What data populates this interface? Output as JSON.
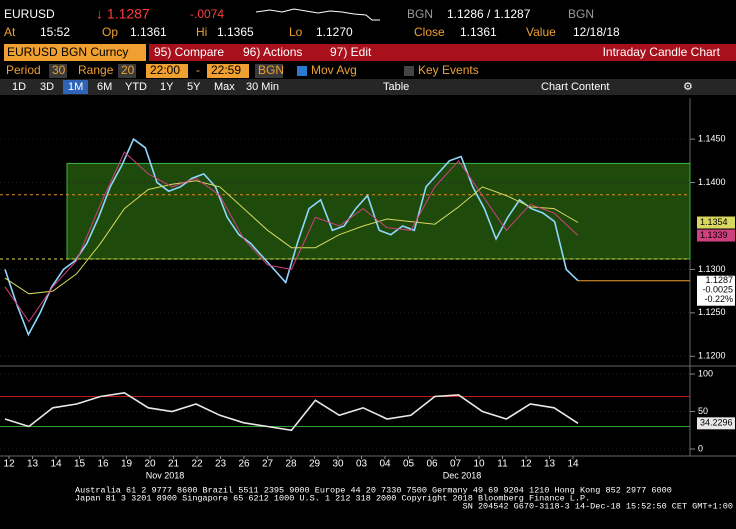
{
  "header": {
    "ticker": "EURUSD",
    "last": "↓ 1.1287",
    "change": "-.0074",
    "source": "BGN",
    "bid_ask": "1.1286 / 1.1287",
    "source2": "BGN"
  },
  "quote": {
    "at_label": "At",
    "at": "15:52",
    "op_label": "Op",
    "op": "1.1361",
    "hi_label": "Hi",
    "hi": "1.1365",
    "lo_label": "Lo",
    "lo": "1.1270",
    "close_label": "Close",
    "close": "1.1361",
    "value_label": "Value",
    "value": "12/18/18"
  },
  "command_bar": {
    "security": "EURUSD BGN Curncy",
    "compare": "95) Compare",
    "actions": "96) Actions",
    "edit": "97) Edit",
    "title": "Intraday Candle Chart"
  },
  "settings": {
    "period_label": "Period",
    "period": "30",
    "range_label": "Range",
    "range": "20",
    "start": "22:00",
    "dash": "-",
    "end": "22:59",
    "source": "BGN",
    "mov_avg": "Mov Avg",
    "key_events": "Key Events"
  },
  "toolbar": {
    "buttons": [
      "1D",
      "3D",
      "1M",
      "6M",
      "YTD",
      "1Y",
      "5Y",
      "Max",
      "30 Min"
    ],
    "table": "Table",
    "chart_content": "Chart Content"
  },
  "chart_data": [
    {
      "type": "line",
      "ylim": [
        1.119,
        1.1495
      ],
      "yticks": [
        {
          "value": 1.145,
          "label": "1.1450"
        },
        {
          "value": 1.14,
          "label": "1.1400"
        },
        {
          "value": 1.13,
          "label": "1.1300"
        },
        {
          "value": 1.125,
          "label": "1.1250"
        },
        {
          "value": 1.12,
          "label": "1.1200"
        }
      ],
      "band": [
        1.1312,
        1.1422
      ],
      "levels": [
        {
          "value": 1.1386,
          "color": "#e08a1e"
        },
        {
          "value": 1.1312,
          "color": "#e0e040"
        }
      ],
      "series": [
        {
          "color": "#8fd8ff",
          "values": [
            1.13,
            1.126,
            1.1225,
            1.125,
            1.128,
            1.13,
            1.131,
            1.133,
            1.136,
            1.1395,
            1.142,
            1.145,
            1.144,
            1.14,
            1.139,
            1.1395,
            1.1405,
            1.141,
            1.1395,
            1.136,
            1.134,
            1.133,
            1.1315,
            1.13,
            1.1285,
            1.133,
            1.137,
            1.138,
            1.1345,
            1.135,
            1.137,
            1.1385,
            1.1345,
            1.134,
            1.135,
            1.1345,
            1.1395,
            1.141,
            1.1425,
            1.143,
            1.1395,
            1.137,
            1.1335,
            1.136,
            1.138,
            1.137,
            1.1365,
            1.1355,
            1.13,
            1.1287
          ],
          "end_label": [
            "1.1287",
            "-0.0025",
            "-0.22%"
          ]
        },
        {
          "color": "#d8d860",
          "values": [
            1.129,
            1.1272,
            1.1275,
            1.1295,
            1.133,
            1.137,
            1.1392,
            1.1398,
            1.1402,
            1.1395,
            1.137,
            1.1345,
            1.1325,
            1.1325,
            1.134,
            1.135,
            1.1358,
            1.1355,
            1.1352,
            1.1372,
            1.1395,
            1.1385,
            1.1372,
            1.137,
            1.1354
          ],
          "end_label": "1.1354"
        },
        {
          "color": "#d0407f",
          "values": [
            1.128,
            1.124,
            1.128,
            1.131,
            1.1375,
            1.1435,
            1.141,
            1.1395,
            1.1405,
            1.1385,
            1.1335,
            1.1305,
            1.13,
            1.136,
            1.135,
            1.137,
            1.1348,
            1.1345,
            1.1395,
            1.1425,
            1.1385,
            1.1345,
            1.1375,
            1.1365,
            1.1339
          ],
          "end_label": "1.1339"
        }
      ]
    },
    {
      "type": "line",
      "ylim": [
        -8,
        108
      ],
      "yticks": [
        0,
        50,
        100
      ],
      "levels": [
        {
          "value": 70,
          "color": "#c01818"
        },
        {
          "value": 30,
          "color": "#2fa02f"
        }
      ],
      "series": [
        {
          "color": "#e8e8e8",
          "values": [
            40,
            30,
            55,
            60,
            70,
            75,
            55,
            50,
            60,
            45,
            35,
            30,
            25,
            65,
            45,
            55,
            40,
            45,
            70,
            72,
            50,
            40,
            60,
            55,
            34.2296
          ],
          "end_label": "34.2296"
        }
      ]
    }
  ],
  "x_axis": {
    "days": [
      "12",
      "13",
      "14",
      "15",
      "16",
      "19",
      "20",
      "21",
      "22",
      "23",
      "26",
      "27",
      "28",
      "29",
      "30",
      "03",
      "04",
      "05",
      "06",
      "07",
      "10",
      "11",
      "12",
      "13",
      "14"
    ],
    "months": [
      "Nov 2018",
      "Dec 2018"
    ]
  },
  "footer": [
    "Australia 61 2 9777 8600 Brazil 5511 2395 9000 Europe 44 20 7330 7500 Germany 49 69 9204 1210 Hong Kong 852 2977 6000",
    "Japan 81 3 3201 8900       Singapore 65 6212 1000       U.S. 1 212 318 2000          Copyright 2018 Bloomberg Finance L.P.",
    "SN 204542 G670-3118-3 14-Dec-18 15:52:50 CET  GMT+1:00"
  ]
}
